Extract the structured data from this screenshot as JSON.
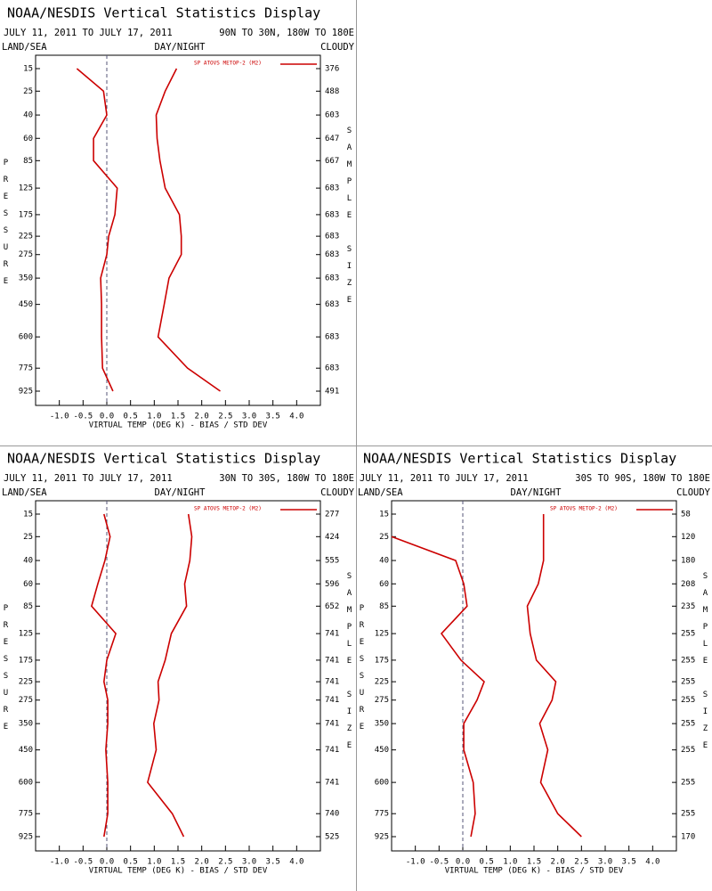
{
  "chart_data": [
    {
      "type": "line",
      "title": "NOAA/NESDIS Vertical Statistics Display",
      "date_range": "JULY 11, 2011 TO JULY 17, 2011",
      "region": "90N TO 30N, 180W TO 180E",
      "labels": {
        "left": "LAND/SEA",
        "center": "DAY/NIGHT",
        "right": "CLOUDY"
      },
      "ylabel": "PRESSURE",
      "y2label": "SAMPLE SIZE",
      "xlabel": "VIRTUAL TEMP (DEG K) - BIAS / STD DEV",
      "categories": [
        15,
        25,
        40,
        60,
        85,
        125,
        175,
        225,
        275,
        350,
        450,
        600,
        775,
        925
      ],
      "series": [
        {
          "name": "SP ATOVS METOP-2 (M2)",
          "color": "#cc0000",
          "values": [
            -0.63,
            -0.07,
            0.0,
            -0.28,
            -0.28,
            0.22,
            0.17,
            0.04,
            0.0,
            -0.13,
            -0.11,
            -0.11,
            -0.09,
            0.13
          ]
        },
        {
          "color": "#cc0000",
          "values": [
            1.47,
            1.23,
            1.04,
            1.06,
            1.12,
            1.23,
            1.53,
            1.57,
            1.57,
            1.31,
            1.21,
            1.08,
            1.7,
            2.39
          ]
        }
      ],
      "sample_sizes": [
        376,
        488,
        603,
        647,
        667,
        683,
        683,
        683,
        683,
        683,
        683,
        683,
        683,
        491
      ],
      "xlim": [
        -1.5,
        4.5
      ],
      "xticks": [
        {
          "value": -1,
          "label": "-1.0"
        },
        -0.5,
        {
          "value": 0,
          "label": "0.0"
        },
        0.5,
        {
          "value": 1,
          "label": "1.0"
        },
        1.5,
        {
          "value": 2,
          "label": "2.0"
        },
        2.5,
        {
          "value": 3,
          "label": "3.0"
        },
        3.5,
        {
          "value": 4,
          "label": "4.0"
        }
      ]
    },
    {
      "type": "line",
      "title": "NOAA/NESDIS Vertical Statistics Display",
      "date_range": "JULY 11, 2011 TO JULY 17, 2011",
      "region": "30N TO 30S, 180W TO 180E",
      "labels": {
        "left": "LAND/SEA",
        "center": "DAY/NIGHT",
        "right": "CLOUDY"
      },
      "ylabel": "PRESSURE",
      "y2label": "SAMPLE SIZE",
      "xlabel": "VIRTUAL TEMP (DEG K) - BIAS / STD DEV",
      "categories": [
        15,
        25,
        40,
        60,
        85,
        125,
        175,
        225,
        275,
        350,
        450,
        600,
        775,
        925
      ],
      "series": [
        {
          "name": "SP ATOVS METOP-2 (M2)",
          "color": "#cc0000",
          "values": [
            -0.06,
            0.07,
            -0.04,
            -0.19,
            -0.32,
            0.19,
            0.0,
            -0.06,
            0.02,
            0.02,
            -0.02,
            0.02,
            0.02,
            -0.06
          ]
        },
        {
          "color": "#cc0000",
          "values": [
            1.72,
            1.79,
            1.75,
            1.64,
            1.68,
            1.36,
            1.23,
            1.08,
            1.1,
            0.99,
            1.04,
            0.86,
            1.38,
            1.62
          ]
        }
      ],
      "sample_sizes": [
        277,
        424,
        555,
        596,
        652,
        741,
        741,
        741,
        741,
        741,
        741,
        741,
        740,
        525
      ],
      "xlim": [
        -1.5,
        4.5
      ],
      "xticks": [
        {
          "value": -1,
          "label": "-1.0"
        },
        -0.5,
        {
          "value": 0,
          "label": "0.0"
        },
        0.5,
        {
          "value": 1,
          "label": "1.0"
        },
        1.5,
        {
          "value": 2,
          "label": "2.0"
        },
        2.5,
        {
          "value": 3,
          "label": "3.0"
        },
        3.5,
        {
          "value": 4,
          "label": "4.0"
        }
      ]
    },
    {
      "type": "line",
      "title": "NOAA/NESDIS Vertical Statistics Display",
      "date_range": "JULY 11, 2011 TO JULY 17, 2011",
      "region": "30S TO 90S, 180W TO 180E",
      "labels": {
        "left": "LAND/SEA",
        "center": "DAY/NIGHT",
        "right": "CLOUDY"
      },
      "ylabel": "PRESSURE",
      "y2label": "SAMPLE SIZE",
      "xlabel": "VIRTUAL TEMP (DEG K) - BIAS / STD DEV",
      "categories": [
        15,
        25,
        40,
        60,
        85,
        125,
        175,
        225,
        275,
        350,
        450,
        600,
        775,
        925
      ],
      "series": [
        {
          "name": "SP ATOVS METOP-2 (M2)",
          "color": "#cc0000",
          "values": [
            null,
            -1.5,
            -0.15,
            0.02,
            0.09,
            -0.45,
            -0.04,
            0.45,
            0.3,
            0.02,
            0.02,
            0.22,
            0.26,
            0.17
          ]
        },
        {
          "color": "#cc0000",
          "values": [
            1.7,
            1.7,
            1.7,
            1.59,
            1.36,
            1.42,
            1.55,
            1.96,
            1.88,
            1.62,
            1.79,
            1.64,
            2.0,
            2.5
          ]
        }
      ],
      "sample_sizes": [
        58,
        120,
        180,
        208,
        235,
        255,
        255,
        255,
        255,
        255,
        255,
        255,
        255,
        170
      ],
      "xlim": [
        -1.5,
        4.5
      ],
      "xticks": [
        {
          "value": -1,
          "label": "-1.0"
        },
        -0.5,
        {
          "value": 0,
          "label": "0.0"
        },
        0.5,
        {
          "value": 1,
          "label": "1.0"
        },
        1.5,
        {
          "value": 2,
          "label": "2.0"
        },
        2.5,
        {
          "value": 3,
          "label": "3.0"
        },
        3.5,
        {
          "value": 4,
          "label": "4.0"
        }
      ]
    }
  ]
}
